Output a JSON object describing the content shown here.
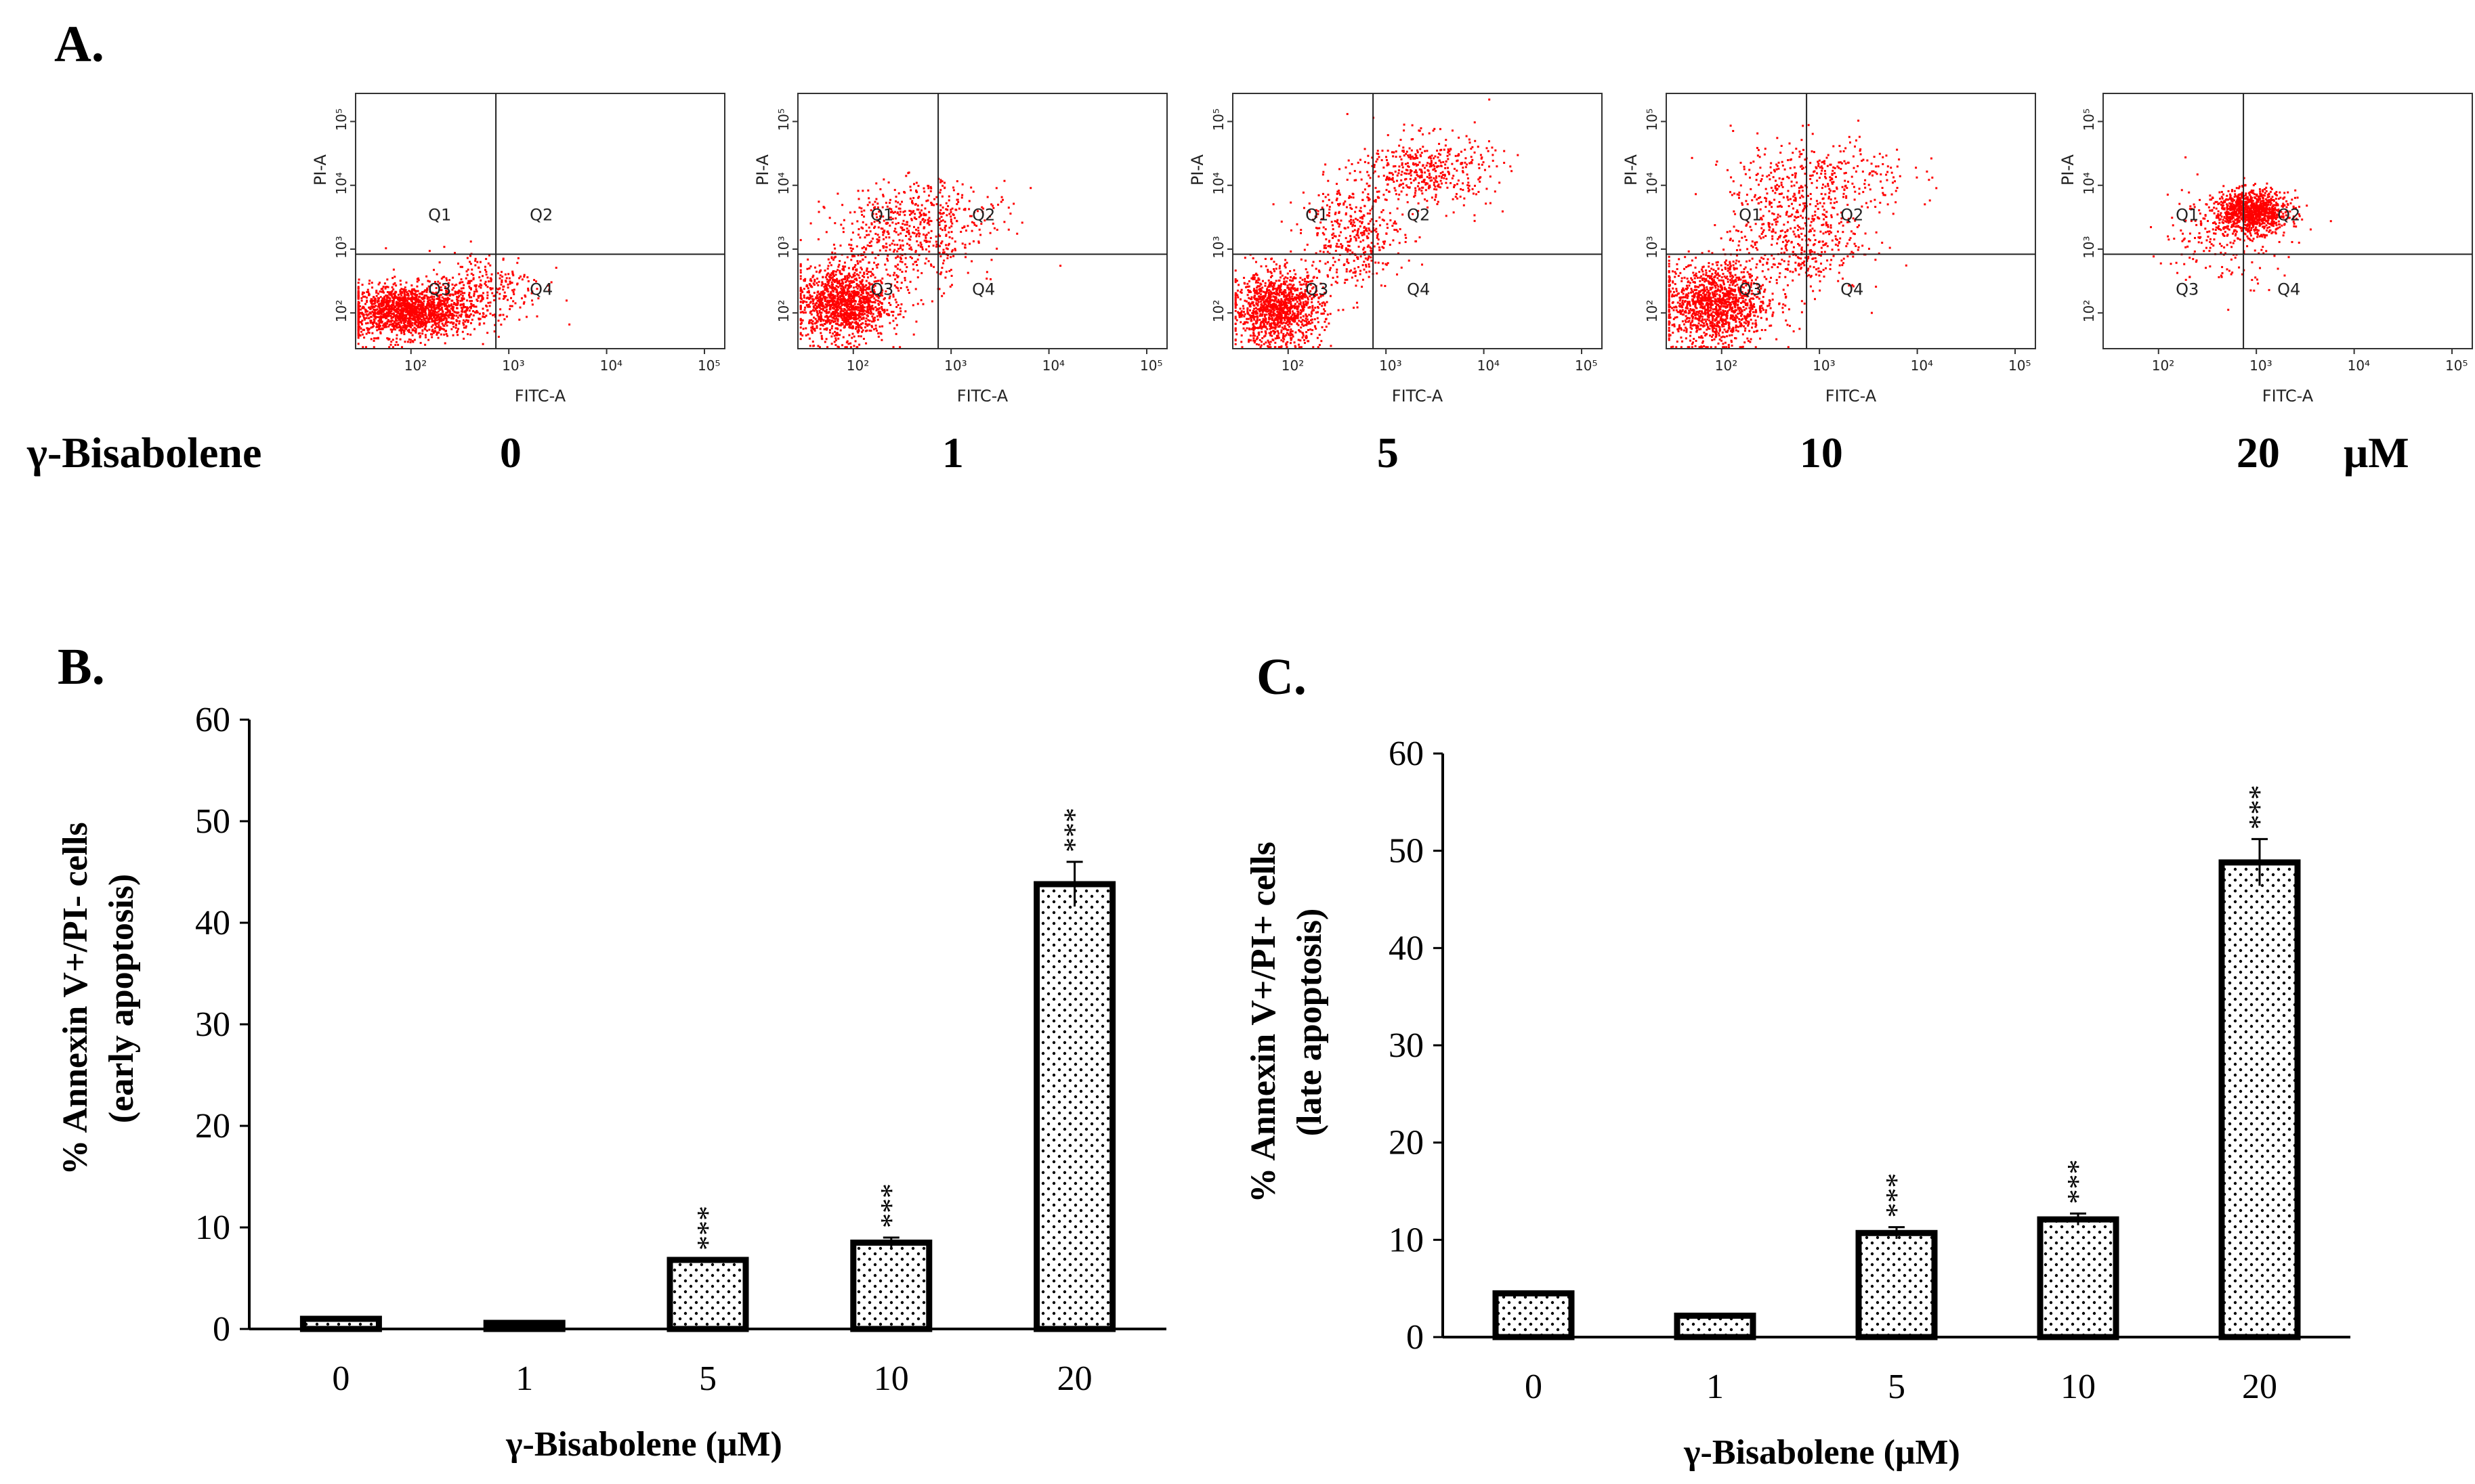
{
  "panel_a": {
    "label": "A.",
    "treatment_label": "γ-Bisabolene",
    "unit_label": "μM",
    "x_axis": "FITC-A",
    "y_axis": "PI-A",
    "x_ticks": [
      "10²",
      "10³",
      "10⁴",
      "10⁵"
    ],
    "y_ticks": [
      "10²",
      "10³",
      "10⁴",
      "10⁵"
    ],
    "quadrants": [
      "Q1",
      "Q2",
      "Q3",
      "Q4"
    ],
    "point_color": "#ff0000",
    "plots": [
      {
        "dose": "0"
      },
      {
        "dose": "1"
      },
      {
        "dose": "5"
      },
      {
        "dose": "10"
      },
      {
        "dose": "20"
      }
    ]
  },
  "chart_data": [
    {
      "panel": "B.",
      "type": "bar",
      "categories": [
        "0",
        "1",
        "5",
        "10",
        "20"
      ],
      "values": [
        1.0,
        0.6,
        6.8,
        8.5,
        43.8
      ],
      "errors": [
        0,
        0,
        0,
        0.5,
        2.2
      ],
      "significance": [
        "",
        "",
        "***",
        "***",
        "***"
      ],
      "xlabel": "γ-Bisabolene (μM)",
      "ylabel": "% Annexin V+/PI- cells",
      "ylabel2": "(early apoptosis)",
      "ylim": [
        0,
        60
      ],
      "yticks": [
        0,
        10,
        20,
        30,
        40,
        50,
        60
      ],
      "grid": false
    },
    {
      "panel": "C.",
      "type": "bar",
      "categories": [
        "0",
        "1",
        "5",
        "10",
        "20"
      ],
      "values": [
        4.5,
        2.2,
        10.7,
        12.1,
        48.8
      ],
      "errors": [
        0,
        0,
        0.6,
        0.6,
        2.4
      ],
      "significance": [
        "",
        "",
        "***",
        "***",
        "***"
      ],
      "xlabel": "γ-Bisabolene (μM)",
      "ylabel": "% Annexin V+/PI+ cells",
      "ylabel2": "(late apoptosis)",
      "ylim": [
        0,
        60
      ],
      "yticks": [
        0,
        10,
        20,
        30,
        40,
        50,
        60
      ],
      "grid": false
    }
  ]
}
